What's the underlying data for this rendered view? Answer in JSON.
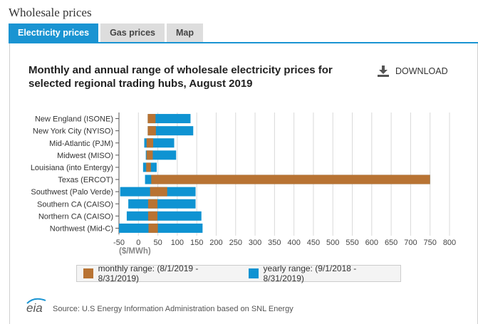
{
  "page": {
    "title": "Wholesale prices"
  },
  "tabs": [
    {
      "label": "Electricity prices",
      "active": true
    },
    {
      "label": "Gas prices",
      "active": false
    },
    {
      "label": "Map",
      "active": false
    }
  ],
  "download": {
    "label": "DOWNLOAD",
    "icon": "download-icon"
  },
  "legend": {
    "monthly": "monthly range: (8/1/2019 - 8/31/2019)",
    "yearly": "yearly range: (9/1/2018 - 8/31/2019)"
  },
  "source": {
    "logo_text": "eia",
    "text": "Source: U.S Energy Information Administration based on SNL Energy"
  },
  "colors": {
    "monthly": "#b87333",
    "yearly": "#0f93d2",
    "accent": "#1a94d2"
  },
  "chart_data": {
    "type": "bar",
    "orientation": "horizontal-range",
    "title": "Monthly and annual range of wholesale electricity prices for selected regional trading hubs, August 2019",
    "xunit_label": "($/MWh)",
    "xlim": [
      -50,
      800
    ],
    "xticks": [
      -50,
      0,
      50,
      100,
      150,
      200,
      250,
      300,
      350,
      400,
      450,
      500,
      550,
      600,
      650,
      700,
      750,
      800
    ],
    "grid": true,
    "legend_position": "bottom",
    "categories": [
      "New England (ISONE)",
      "New York City (NYISO)",
      "Mid-Atlantic (PJM)",
      "Midwest (MISO)",
      "Louisiana (into Entergy)",
      "Texas (ERCOT)",
      "Southwest (Palo Verde)",
      "Southern CA (CAISO)",
      "Northern CA (CAISO)",
      "Northwest (Mid-C)"
    ],
    "series": [
      {
        "name": "monthly range: (8/1/2019 - 8/31/2019)",
        "ranges": [
          [
            24,
            44
          ],
          [
            24,
            45
          ],
          [
            21,
            38
          ],
          [
            21,
            37
          ],
          [
            20,
            32
          ],
          [
            33,
            750
          ],
          [
            30,
            74
          ],
          [
            25,
            49
          ],
          [
            25,
            49
          ],
          [
            26,
            50
          ]
        ]
      },
      {
        "name": "yearly range: (9/1/2018 - 8/31/2019)",
        "ranges": [
          [
            24,
            134
          ],
          [
            24,
            141
          ],
          [
            15,
            92
          ],
          [
            19,
            97
          ],
          [
            12,
            47
          ],
          [
            17,
            750
          ],
          [
            -47,
            147
          ],
          [
            -26,
            147
          ],
          [
            -30,
            162
          ],
          [
            -50,
            165
          ]
        ]
      }
    ]
  }
}
